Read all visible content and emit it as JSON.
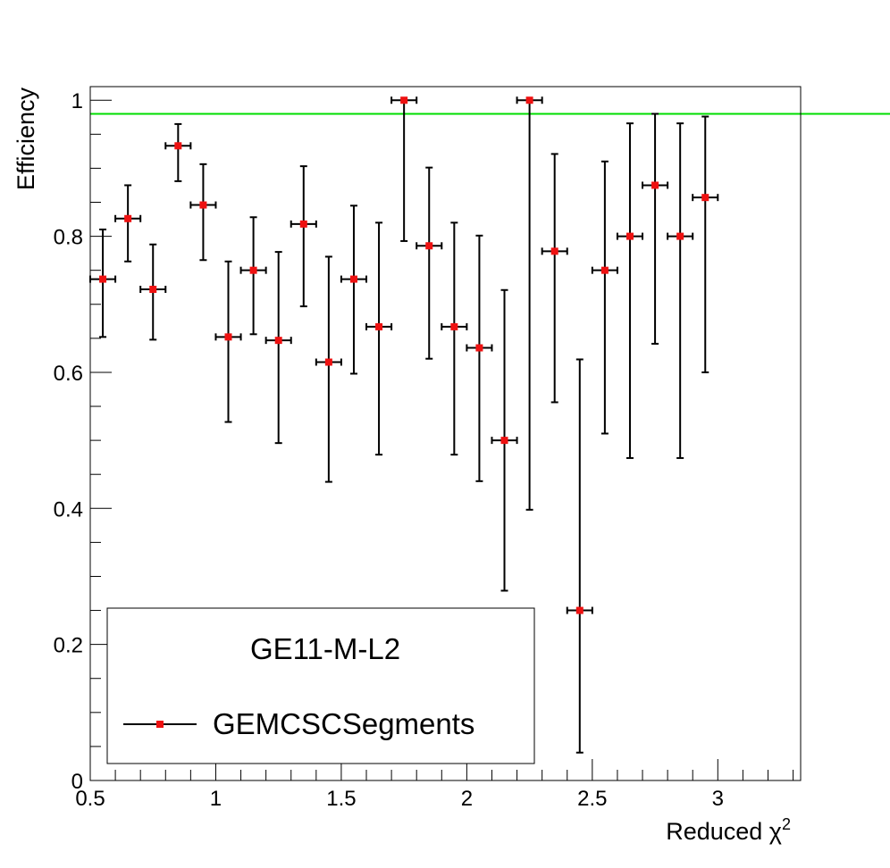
{
  "chart_data": {
    "type": "scatter",
    "title": "",
    "xlabel": "Reduced χ",
    "xlabel_sup": "2",
    "ylabel": "Efficiency",
    "xlim": [
      0.5,
      3.33
    ],
    "ylim": [
      0,
      1.02
    ],
    "x_ticks": [
      {
        "value": 0.5,
        "label": "0.5"
      },
      {
        "value": 1,
        "label": "1"
      },
      {
        "value": 1.5,
        "label": "1.5"
      },
      {
        "value": 2,
        "label": "2"
      },
      {
        "value": 2.5,
        "label": "2.5"
      },
      {
        "value": 3,
        "label": "3"
      }
    ],
    "y_ticks": [
      {
        "value": 0,
        "label": "0"
      },
      {
        "value": 0.2,
        "label": "0.2"
      },
      {
        "value": 0.4,
        "label": "0.4"
      },
      {
        "value": 0.6,
        "label": "0.6"
      },
      {
        "value": 0.8,
        "label": "0.8"
      },
      {
        "value": 1,
        "label": "1"
      }
    ],
    "reference_line": {
      "y": 0.98,
      "color": "#00dd00"
    },
    "marker_color": "#ee1111",
    "legend": {
      "header": "GE11-M-L2",
      "entries": [
        {
          "label": "GEMCSCSegments"
        }
      ],
      "placement": "bottom-left"
    },
    "series": [
      {
        "name": "GEMCSCSegments",
        "x_halfwidth": 0.05,
        "points": [
          {
            "x": 0.55,
            "y": 0.737,
            "ylo": 0.652,
            "yhi": 0.81
          },
          {
            "x": 0.65,
            "y": 0.826,
            "ylo": 0.763,
            "yhi": 0.875
          },
          {
            "x": 0.75,
            "y": 0.722,
            "ylo": 0.648,
            "yhi": 0.788
          },
          {
            "x": 0.85,
            "y": 0.933,
            "ylo": 0.881,
            "yhi": 0.965
          },
          {
            "x": 0.95,
            "y": 0.846,
            "ylo": 0.765,
            "yhi": 0.906
          },
          {
            "x": 1.05,
            "y": 0.652,
            "ylo": 0.527,
            "yhi": 0.763
          },
          {
            "x": 1.15,
            "y": 0.75,
            "ylo": 0.656,
            "yhi": 0.828
          },
          {
            "x": 1.25,
            "y": 0.647,
            "ylo": 0.496,
            "yhi": 0.777
          },
          {
            "x": 1.35,
            "y": 0.818,
            "ylo": 0.697,
            "yhi": 0.903
          },
          {
            "x": 1.45,
            "y": 0.615,
            "ylo": 0.439,
            "yhi": 0.77
          },
          {
            "x": 1.55,
            "y": 0.737,
            "ylo": 0.598,
            "yhi": 0.845
          },
          {
            "x": 1.65,
            "y": 0.667,
            "ylo": 0.479,
            "yhi": 0.82
          },
          {
            "x": 1.75,
            "y": 1.0,
            "ylo": 0.793,
            "yhi": 1.0
          },
          {
            "x": 1.85,
            "y": 0.786,
            "ylo": 0.62,
            "yhi": 0.901
          },
          {
            "x": 1.95,
            "y": 0.667,
            "ylo": 0.479,
            "yhi": 0.82
          },
          {
            "x": 2.05,
            "y": 0.636,
            "ylo": 0.44,
            "yhi": 0.801
          },
          {
            "x": 2.15,
            "y": 0.5,
            "ylo": 0.279,
            "yhi": 0.721
          },
          {
            "x": 2.25,
            "y": 1.0,
            "ylo": 0.398,
            "yhi": 1.0
          },
          {
            "x": 2.35,
            "y": 0.778,
            "ylo": 0.556,
            "yhi": 0.921
          },
          {
            "x": 2.45,
            "y": 0.25,
            "ylo": 0.041,
            "yhi": 0.619
          },
          {
            "x": 2.55,
            "y": 0.75,
            "ylo": 0.51,
            "yhi": 0.91
          },
          {
            "x": 2.65,
            "y": 0.8,
            "ylo": 0.474,
            "yhi": 0.966
          },
          {
            "x": 2.75,
            "y": 0.875,
            "ylo": 0.642,
            "yhi": 0.98
          },
          {
            "x": 2.85,
            "y": 0.8,
            "ylo": 0.474,
            "yhi": 0.966
          },
          {
            "x": 2.95,
            "y": 0.857,
            "ylo": 0.6,
            "yhi": 0.976
          }
        ]
      }
    ]
  }
}
